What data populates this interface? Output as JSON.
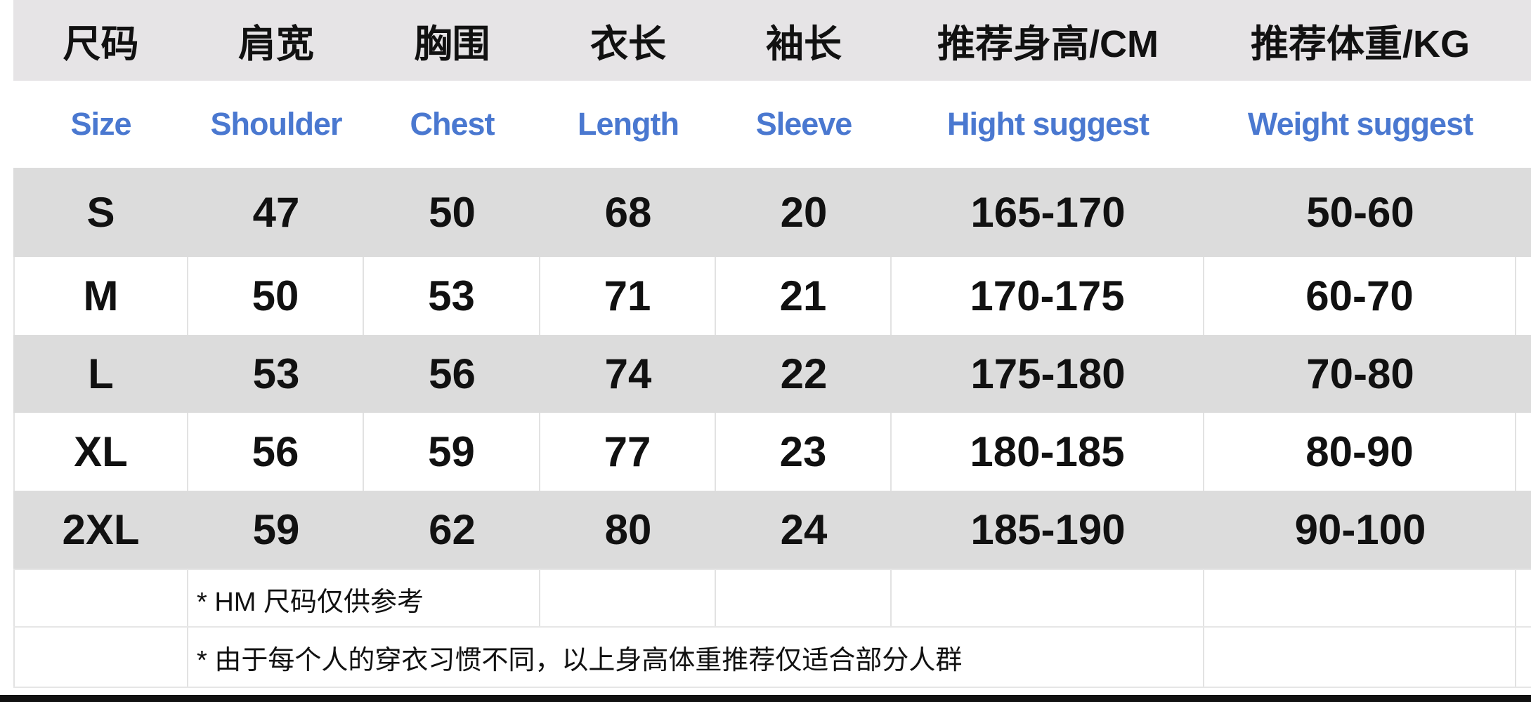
{
  "header_cn": [
    "尺码",
    "肩宽",
    "胸围",
    "衣长",
    "袖长",
    "推荐身高/CM",
    "推荐体重/KG"
  ],
  "header_en": [
    "Size",
    "Shoulder",
    "Chest",
    "Length",
    "Sleeve",
    "Hight suggest",
    "Weight suggest"
  ],
  "rows": [
    [
      "S",
      "47",
      "50",
      "68",
      "20",
      "165-170",
      "50-60"
    ],
    [
      "M",
      "50",
      "53",
      "71",
      "21",
      "170-175",
      "60-70"
    ],
    [
      "L",
      "53",
      "56",
      "74",
      "22",
      "175-180",
      "70-80"
    ],
    [
      "XL",
      "56",
      "59",
      "77",
      "23",
      "180-185",
      "80-90"
    ],
    [
      "2XL",
      "59",
      "62",
      "80",
      "24",
      "185-190",
      "90-100"
    ]
  ],
  "notes": [
    "* HM 尺码仅供参考",
    "* 由于每个人的穿衣习惯不同，以上身高体重推荐仅适合部分人群"
  ],
  "colors": {
    "header_bg": "#e6e4e6",
    "english_text": "#4a78d0",
    "stripe": "#dcdcdc"
  }
}
